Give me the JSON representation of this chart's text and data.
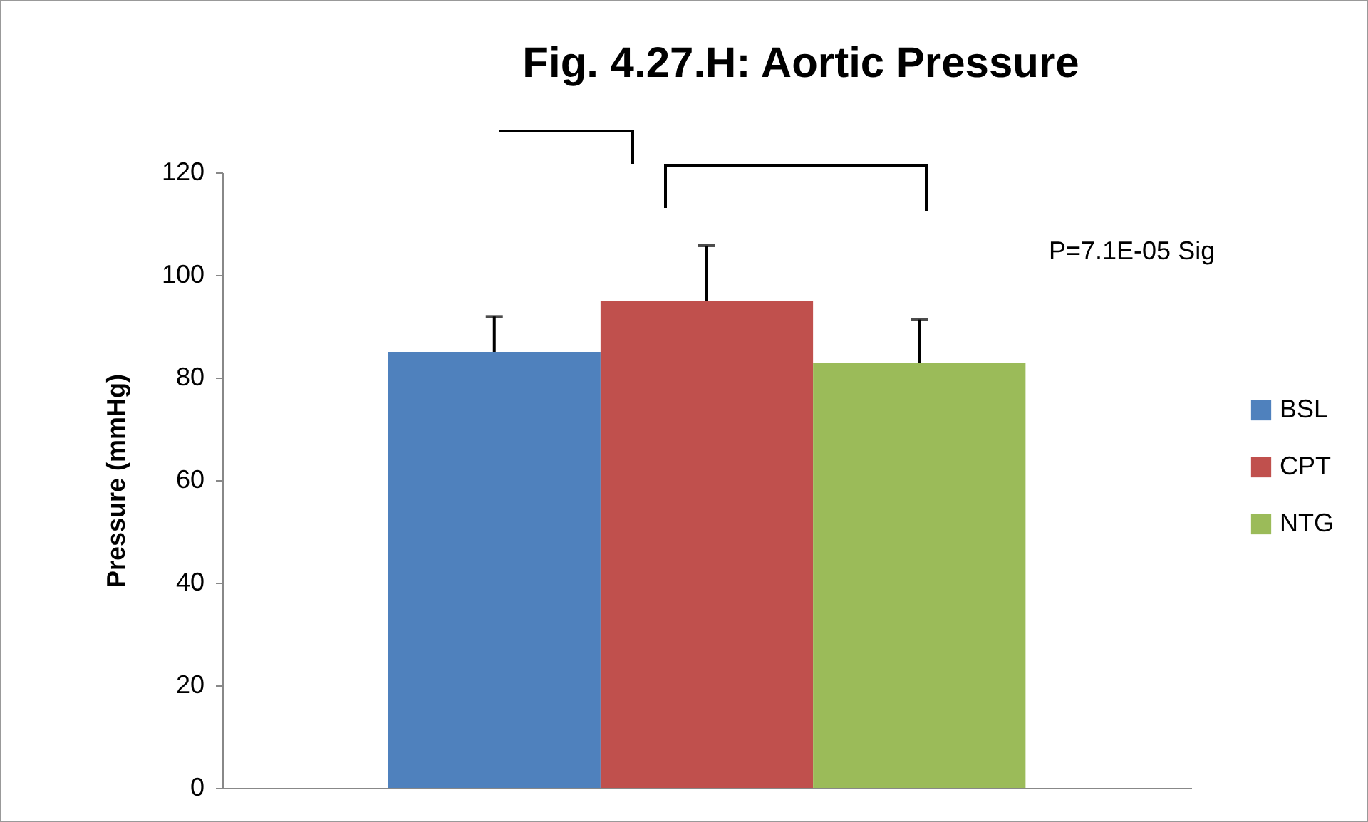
{
  "chart_data": {
    "type": "bar",
    "title": "Fig. 4.27.H:  Aortic Pressure",
    "ylabel": "Pressure (mmHg)",
    "categories": [
      null
    ],
    "series": [
      {
        "name": "BSL",
        "color": "#4f81bd",
        "values": [
          85
        ],
        "errors": [
          [
            85,
            91.9
          ]
        ]
      },
      {
        "name": "CPT",
        "color": "#c0504d",
        "values": [
          95
        ],
        "errors": [
          [
            95,
            105.7
          ]
        ]
      },
      {
        "name": "NTG",
        "color": "#9bbb59",
        "values": [
          82.8
        ],
        "errors": [
          [
            82.8,
            91.3
          ]
        ]
      }
    ],
    "ylim": [
      0,
      120
    ],
    "yticks": [
      0,
      20,
      40,
      60,
      80,
      100,
      120
    ],
    "grid": false,
    "legend": "right",
    "annotations": [
      "P=7.1E-05 Sig"
    ]
  }
}
